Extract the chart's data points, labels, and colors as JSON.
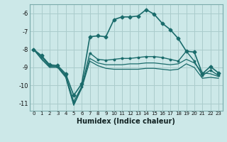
{
  "title": "",
  "xlabel": "Humidex (Indice chaleur)",
  "background_color": "#cce8e8",
  "grid_color": "#aacccc",
  "line_color": "#1a6b6b",
  "xlim": [
    -0.5,
    23.5
  ],
  "ylim": [
    -11.4,
    -5.5
  ],
  "yticks": [
    -11,
    -10,
    -9,
    -8,
    -7,
    -6
  ],
  "xticks": [
    0,
    1,
    2,
    3,
    4,
    5,
    6,
    7,
    8,
    9,
    10,
    11,
    12,
    13,
    14,
    15,
    16,
    17,
    18,
    19,
    20,
    21,
    22,
    23
  ],
  "line1_x": [
    0,
    1,
    2,
    3,
    4,
    5,
    6,
    7,
    8,
    9,
    10,
    11,
    12,
    13,
    14,
    15,
    16,
    17,
    18,
    19,
    20,
    21,
    22,
    23
  ],
  "line1_y": [
    -8.0,
    -8.35,
    -8.85,
    -8.9,
    -9.35,
    -10.55,
    -9.9,
    -7.3,
    -7.25,
    -7.3,
    -6.35,
    -6.2,
    -6.2,
    -6.15,
    -5.8,
    -6.05,
    -6.55,
    -6.9,
    -7.4,
    -8.1,
    -8.15,
    -9.35,
    -8.95,
    -9.3
  ],
  "line2_x": [
    0,
    1,
    2,
    3,
    4,
    5,
    6,
    7,
    8,
    9,
    10,
    11,
    12,
    13,
    14,
    15,
    16,
    17,
    18,
    19,
    20,
    21,
    22,
    23
  ],
  "line2_y": [
    -8.0,
    -8.4,
    -8.9,
    -8.95,
    -9.45,
    -10.9,
    -10.05,
    -8.2,
    -8.55,
    -8.6,
    -8.55,
    -8.5,
    -8.5,
    -8.45,
    -8.4,
    -8.4,
    -8.45,
    -8.55,
    -8.65,
    -8.1,
    -8.65,
    -9.45,
    -9.15,
    -9.45
  ],
  "line3_x": [
    0,
    1,
    2,
    3,
    4,
    5,
    6,
    7,
    8,
    9,
    10,
    11,
    12,
    13,
    14,
    15,
    16,
    17,
    18,
    19,
    20,
    21,
    22,
    23
  ],
  "line3_y": [
    -8.0,
    -8.5,
    -8.95,
    -8.95,
    -9.5,
    -11.05,
    -10.1,
    -8.5,
    -8.75,
    -8.85,
    -8.85,
    -8.85,
    -8.8,
    -8.8,
    -8.75,
    -8.75,
    -8.8,
    -8.85,
    -8.8,
    -8.55,
    -8.75,
    -9.3,
    -9.35,
    -9.5
  ],
  "line4_x": [
    0,
    1,
    2,
    3,
    4,
    5,
    6,
    7,
    8,
    9,
    10,
    11,
    12,
    13,
    14,
    15,
    16,
    17,
    18,
    19,
    20,
    21,
    22,
    23
  ],
  "line4_y": [
    -8.0,
    -8.55,
    -9.0,
    -9.0,
    -9.55,
    -11.1,
    -10.15,
    -8.65,
    -8.9,
    -9.05,
    -9.1,
    -9.1,
    -9.1,
    -9.1,
    -9.05,
    -9.05,
    -9.1,
    -9.15,
    -9.1,
    -8.8,
    -9.0,
    -9.6,
    -9.55,
    -9.6
  ]
}
